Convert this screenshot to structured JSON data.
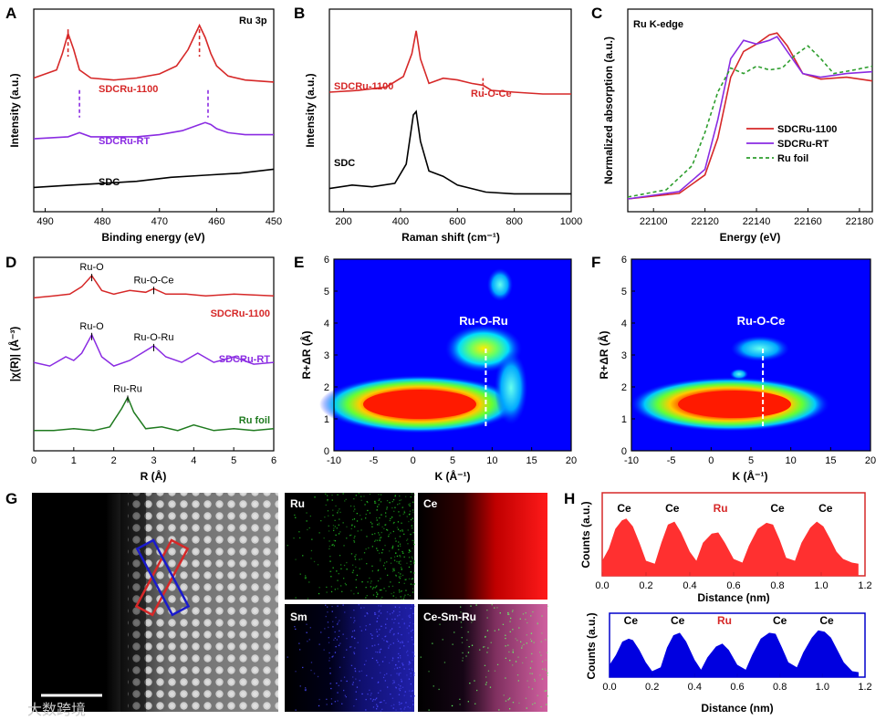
{
  "panel_labels": {
    "A": "A",
    "B": "B",
    "C": "C",
    "D": "D",
    "E": "E",
    "F": "F",
    "G": "G",
    "H": "H"
  },
  "colors": {
    "red": "#d62828",
    "purple": "#8a2be2",
    "black": "#000000",
    "green": "#1f7a1f",
    "blue": "#0000cc",
    "dashgreen": "#2e9e2e"
  },
  "chart_data": [
    {
      "id": "A",
      "type": "line",
      "title": "Ru 3p",
      "xlabel": "Binding energy (eV)",
      "ylabel": "Intensity (a.u.)",
      "xlim": [
        490,
        450
      ],
      "xticks": [
        490,
        480,
        470,
        460,
        450
      ],
      "series": [
        {
          "name": "SDCRu-1100",
          "color": "#d62828",
          "x": [
            492,
            488,
            487,
            486,
            485,
            484,
            482,
            478,
            474,
            470,
            467,
            465,
            464,
            463,
            462,
            461,
            460,
            458,
            455,
            450
          ],
          "y": [
            0.66,
            0.7,
            0.78,
            0.88,
            0.8,
            0.7,
            0.66,
            0.65,
            0.66,
            0.68,
            0.72,
            0.8,
            0.86,
            0.92,
            0.86,
            0.78,
            0.72,
            0.67,
            0.65,
            0.64
          ]
        },
        {
          "name": "SDCRu-RT",
          "color": "#8a2be2",
          "x": [
            492,
            486,
            484,
            482,
            478,
            474,
            470,
            466,
            463,
            462,
            461,
            460,
            458,
            455,
            450
          ],
          "y": [
            0.36,
            0.37,
            0.39,
            0.37,
            0.37,
            0.37,
            0.38,
            0.4,
            0.43,
            0.44,
            0.43,
            0.41,
            0.39,
            0.38,
            0.38
          ]
        },
        {
          "name": "SDC",
          "color": "#000000",
          "x": [
            492,
            486,
            480,
            474,
            468,
            462,
            456,
            450
          ],
          "y": [
            0.12,
            0.13,
            0.14,
            0.15,
            0.17,
            0.18,
            0.19,
            0.21
          ]
        }
      ],
      "peak_markers": [
        {
          "x": 486,
          "series": 0
        },
        {
          "x": 463,
          "series": 0
        },
        {
          "x": 484,
          "series": 1
        },
        {
          "x": 461.5,
          "series": 1
        }
      ]
    },
    {
      "id": "B",
      "type": "line",
      "xlabel": "Raman shift (cm⁻¹)",
      "ylabel": "Intensity (a.u.)",
      "xlim": [
        150,
        1000
      ],
      "xticks": [
        200,
        400,
        600,
        800,
        1000
      ],
      "annotation": "Ru-O-Ce",
      "series": [
        {
          "name": "SDCRu-1100",
          "color": "#d62828",
          "x": [
            150,
            250,
            350,
            410,
            440,
            455,
            470,
            500,
            550,
            600,
            650,
            690,
            720,
            800,
            900,
            1000
          ],
          "y": [
            0.63,
            0.64,
            0.66,
            0.72,
            0.85,
            0.98,
            0.82,
            0.68,
            0.71,
            0.7,
            0.68,
            0.67,
            0.64,
            0.63,
            0.62,
            0.62
          ]
        },
        {
          "name": "SDC",
          "color": "#000000",
          "x": [
            150,
            230,
            300,
            380,
            420,
            445,
            455,
            470,
            500,
            550,
            600,
            700,
            800,
            900,
            1000
          ],
          "y": [
            0.08,
            0.1,
            0.09,
            0.11,
            0.22,
            0.5,
            0.52,
            0.35,
            0.18,
            0.15,
            0.1,
            0.06,
            0.05,
            0.05,
            0.05
          ]
        }
      ]
    },
    {
      "id": "C",
      "type": "line",
      "title": "Ru K-edge",
      "xlabel": "Energy (eV)",
      "ylabel": "Normalized absorption (a.u.)",
      "xlim": [
        22090,
        22185
      ],
      "xticks": [
        22100,
        22120,
        22140,
        22160,
        22180
      ],
      "legend": "center-right",
      "series": [
        {
          "name": "SDCRu-1100",
          "color": "#d62828",
          "x": [
            22090,
            22110,
            22120,
            22125,
            22130,
            22135,
            22140,
            22145,
            22148,
            22152,
            22158,
            22165,
            22175,
            22185
          ],
          "y": [
            0.02,
            0.05,
            0.15,
            0.35,
            0.68,
            0.82,
            0.86,
            0.91,
            0.92,
            0.85,
            0.7,
            0.67,
            0.68,
            0.66
          ]
        },
        {
          "name": "SDCRu-RT",
          "color": "#8a2be2",
          "x": [
            22090,
            22110,
            22120,
            22125,
            22130,
            22135,
            22140,
            22145,
            22148,
            22152,
            22158,
            22165,
            22175,
            22185
          ],
          "y": [
            0.02,
            0.06,
            0.18,
            0.45,
            0.78,
            0.88,
            0.86,
            0.88,
            0.9,
            0.82,
            0.7,
            0.68,
            0.7,
            0.71
          ]
        },
        {
          "name": "Ru foil",
          "color": "#2e9e2e",
          "dashed": true,
          "x": [
            22090,
            22105,
            22115,
            22120,
            22125,
            22130,
            22135,
            22140,
            22145,
            22150,
            22155,
            22160,
            22165,
            22170,
            22178,
            22185
          ],
          "y": [
            0.03,
            0.07,
            0.2,
            0.38,
            0.6,
            0.73,
            0.7,
            0.74,
            0.72,
            0.73,
            0.8,
            0.85,
            0.78,
            0.7,
            0.72,
            0.74
          ]
        }
      ]
    },
    {
      "id": "D",
      "type": "line",
      "xlabel": "R (Å)",
      "ylabel": "|χ(R)| (Å⁻³)",
      "xlim": [
        0,
        6
      ],
      "xticks": [
        0,
        1,
        2,
        3,
        4,
        5,
        6
      ],
      "series": [
        {
          "name": "SDCRu-1100",
          "color": "#d62828",
          "x": [
            0,
            0.5,
            0.9,
            1.2,
            1.45,
            1.7,
            2.0,
            2.4,
            2.8,
            3.0,
            3.3,
            3.8,
            4.3,
            5,
            6
          ],
          "y": [
            0.82,
            0.83,
            0.84,
            0.88,
            0.94,
            0.86,
            0.84,
            0.86,
            0.85,
            0.87,
            0.84,
            0.84,
            0.83,
            0.84,
            0.83
          ]
        },
        {
          "name": "SDCRu-RT",
          "color": "#8a2be2",
          "x": [
            0,
            0.4,
            0.8,
            1.0,
            1.2,
            1.45,
            1.7,
            2.0,
            2.4,
            2.7,
            3.0,
            3.3,
            3.7,
            4.1,
            4.5,
            5.0,
            5.5,
            6
          ],
          "y": [
            0.47,
            0.45,
            0.5,
            0.48,
            0.52,
            0.62,
            0.5,
            0.45,
            0.48,
            0.52,
            0.56,
            0.5,
            0.47,
            0.52,
            0.47,
            0.5,
            0.46,
            0.47
          ]
        },
        {
          "name": "Ru foil",
          "color": "#1f7a1f",
          "x": [
            0,
            0.5,
            1.0,
            1.5,
            1.9,
            2.2,
            2.35,
            2.5,
            2.8,
            3.2,
            3.6,
            4.0,
            4.5,
            5.0,
            5.5,
            6
          ],
          "y": [
            0.1,
            0.1,
            0.11,
            0.1,
            0.12,
            0.22,
            0.28,
            0.2,
            0.11,
            0.12,
            0.1,
            0.13,
            0.1,
            0.11,
            0.1,
            0.11
          ]
        }
      ],
      "labels": [
        {
          "text": "Ru-O",
          "x": 1.45,
          "series": 0
        },
        {
          "text": "Ru-O-Ce",
          "x": 3.0,
          "series": 0
        },
        {
          "text": "Ru-O",
          "x": 1.45,
          "series": 1
        },
        {
          "text": "Ru-O-Ru",
          "x": 3.0,
          "series": 1
        },
        {
          "text": "Ru-Ru",
          "x": 2.35,
          "series": 2
        }
      ]
    },
    {
      "id": "E",
      "type": "heatmap",
      "xlabel": "K (Å⁻¹)",
      "ylabel": "R+ΔR (Å)",
      "xlim": [
        -10,
        20
      ],
      "ylim": [
        0,
        6
      ],
      "xticks": [
        -10,
        -5,
        0,
        5,
        10,
        15,
        20
      ],
      "yticks": [
        0,
        1,
        2,
        3,
        4,
        5,
        6
      ],
      "annotation": "Ru-O-Ru",
      "marker_k": 9.2
    },
    {
      "id": "F",
      "type": "heatmap",
      "xlabel": "K (Å⁻¹)",
      "ylabel": "R+ΔR (Å)",
      "xlim": [
        -10,
        20
      ],
      "ylim": [
        0,
        6
      ],
      "xticks": [
        -10,
        -5,
        0,
        5,
        10,
        15,
        20
      ],
      "yticks": [
        0,
        1,
        2,
        3,
        4,
        5,
        6
      ],
      "annotation": "Ru-O-Ce",
      "marker_k": 6.5
    },
    {
      "id": "H1",
      "type": "area",
      "color": "#ff3030",
      "xlabel": "Distance (nm)",
      "ylabel": "Counts (a.u.)",
      "xlim": [
        0,
        1.2
      ],
      "xticks": [
        0.0,
        0.2,
        0.4,
        0.6,
        0.8,
        1.0,
        1.2
      ],
      "x": [
        0,
        0.03,
        0.06,
        0.09,
        0.11,
        0.14,
        0.17,
        0.2,
        0.24,
        0.27,
        0.3,
        0.33,
        0.36,
        0.4,
        0.43,
        0.46,
        0.5,
        0.53,
        0.56,
        0.6,
        0.64,
        0.67,
        0.71,
        0.75,
        0.78,
        0.81,
        0.84,
        0.88,
        0.91,
        0.95,
        0.98,
        1.01,
        1.04,
        1.07,
        1.1,
        1.14,
        1.17
      ],
      "y": [
        0.25,
        0.45,
        0.78,
        0.92,
        0.95,
        0.82,
        0.55,
        0.25,
        0.2,
        0.55,
        0.85,
        0.9,
        0.72,
        0.4,
        0.25,
        0.55,
        0.7,
        0.72,
        0.55,
        0.28,
        0.22,
        0.5,
        0.78,
        0.88,
        0.85,
        0.6,
        0.3,
        0.25,
        0.55,
        0.8,
        0.9,
        0.82,
        0.62,
        0.4,
        0.28,
        0.22,
        0.2
      ],
      "peak_labels": [
        {
          "text": "Ce",
          "x": 0.1
        },
        {
          "text": "Ce",
          "x": 0.32
        },
        {
          "text": "Ru",
          "x": 0.54,
          "color": "#d62828"
        },
        {
          "text": "Ce",
          "x": 0.8
        },
        {
          "text": "Ce",
          "x": 1.02
        }
      ]
    },
    {
      "id": "H2",
      "type": "area",
      "color": "#0000e0",
      "xlabel": "Distance (nm)",
      "ylabel": "Counts (a.u.)",
      "xlim": [
        0,
        1.2
      ],
      "xticks": [
        0.0,
        0.2,
        0.4,
        0.6,
        0.8,
        1.0,
        1.2
      ],
      "x": [
        0,
        0.03,
        0.06,
        0.09,
        0.11,
        0.14,
        0.17,
        0.2,
        0.24,
        0.27,
        0.3,
        0.33,
        0.36,
        0.4,
        0.43,
        0.46,
        0.5,
        0.53,
        0.56,
        0.6,
        0.64,
        0.67,
        0.71,
        0.75,
        0.78,
        0.81,
        0.84,
        0.88,
        0.91,
        0.95,
        0.98,
        1.01,
        1.04,
        1.07,
        1.1,
        1.14,
        1.17
      ],
      "y": [
        0.25,
        0.45,
        0.72,
        0.78,
        0.75,
        0.55,
        0.3,
        0.12,
        0.2,
        0.6,
        0.85,
        0.9,
        0.72,
        0.35,
        0.15,
        0.4,
        0.62,
        0.68,
        0.55,
        0.25,
        0.15,
        0.45,
        0.78,
        0.9,
        0.88,
        0.6,
        0.3,
        0.2,
        0.5,
        0.8,
        0.95,
        0.92,
        0.8,
        0.55,
        0.3,
        0.12,
        0.1
      ],
      "peak_labels": [
        {
          "text": "Ce",
          "x": 0.1
        },
        {
          "text": "Ce",
          "x": 0.32
        },
        {
          "text": "Ru",
          "x": 0.54,
          "color": "#d62828"
        },
        {
          "text": "Ce",
          "x": 0.8
        },
        {
          "text": "Ce",
          "x": 1.02
        }
      ]
    }
  ],
  "eds_maps": [
    {
      "label": "Ru",
      "color": "#22c022"
    },
    {
      "label": "Ce",
      "color": "#ff2020"
    },
    {
      "label": "Sm",
      "color": "#2a2aff"
    },
    {
      "label": "Ce-Sm-Ru",
      "color": "#c040a0"
    }
  ],
  "watermark": "大数跨境"
}
